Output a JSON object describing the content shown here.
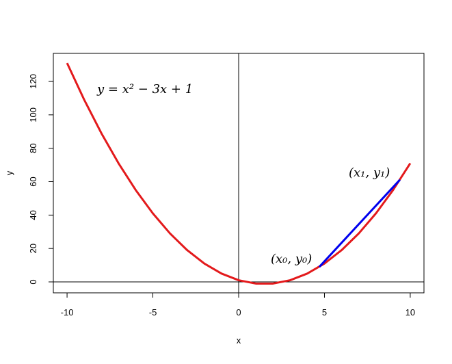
{
  "chart_data": {
    "type": "line",
    "x_label": "x",
    "y_label": "y",
    "xlim": [
      -10.8,
      10.8
    ],
    "ylim": [
      -6.55,
      136.8
    ],
    "xticks": [
      -10,
      -5,
      0,
      5,
      10
    ],
    "yticks": [
      0,
      20,
      40,
      60,
      80,
      100,
      120
    ],
    "hlines": [
      0
    ],
    "vlines": [
      0
    ],
    "series": [
      {
        "color": "#e31a1c",
        "x": [
          -10,
          -9,
          -8,
          -7,
          -6,
          -5,
          -4,
          -3,
          -2,
          -1,
          0,
          1,
          2,
          3,
          4,
          5,
          6,
          7,
          8,
          9,
          10
        ],
        "values": [
          131,
          109,
          89,
          71,
          55,
          41,
          29,
          19,
          11,
          5,
          1,
          -1,
          -1,
          1,
          5,
          11,
          19,
          29,
          41,
          55,
          71
        ]
      },
      {
        "color": "#0000ee",
        "x": [
          4.7,
          9.4
        ],
        "values": [
          8.99,
          61.16
        ]
      }
    ],
    "annotations": [
      "y = x² − 3x + 1",
      "(x₀, y₀)",
      "(x₁, y₁)"
    ],
    "annotation_colors": [
      "#e31a1c",
      "#000000",
      "#000000"
    ]
  }
}
